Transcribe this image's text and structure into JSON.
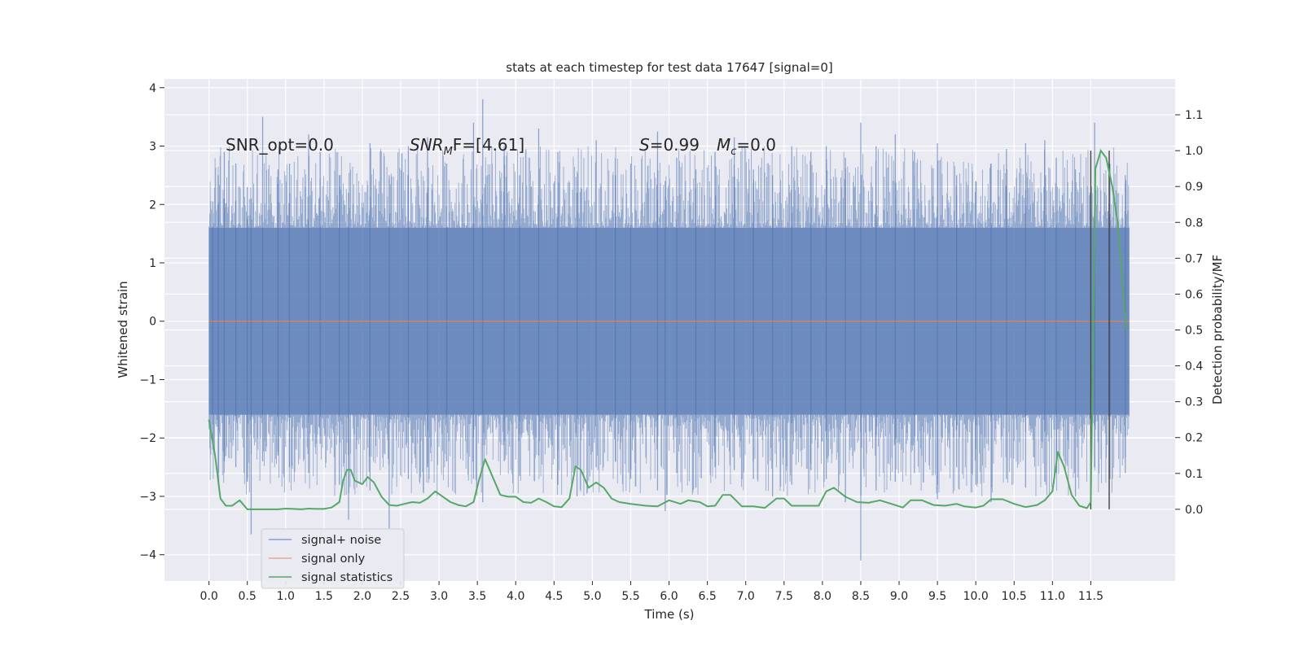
{
  "chart_data": {
    "type": "line",
    "title": "stats at each timestep for test data 17647 [signal=0]",
    "xlabel": "Time (s)",
    "ylabel": "Whitened strain",
    "y2label": "Detection probability/MF",
    "xlim": [
      -0.58,
      12.6
    ],
    "ylim": [
      -4.45,
      4.15
    ],
    "y2lim": [
      -0.2,
      1.2
    ],
    "x_ticks": [
      0.0,
      0.5,
      1.0,
      1.5,
      2.0,
      2.5,
      3.0,
      3.5,
      4.0,
      4.5,
      5.0,
      5.5,
      6.0,
      6.5,
      7.0,
      7.5,
      8.0,
      8.5,
      9.0,
      9.5,
      10.0,
      10.5,
      11.0,
      11.5
    ],
    "x_tick_labels": [
      "0.0",
      "0.5",
      "1.0",
      "1.5",
      "2.0",
      "2.5",
      "3.0",
      "3.5",
      "4.0",
      "4.5",
      "5.0",
      "5.5",
      "6.0",
      "6.5",
      "7.0",
      "7.5",
      "8.0",
      "8.5",
      "9.0",
      "9.5",
      "10.0",
      "10.5",
      "11.0",
      "11.5"
    ],
    "y_ticks": [
      -4,
      -3,
      -2,
      -1,
      0,
      1,
      2,
      3,
      4
    ],
    "y_tick_labels": [
      "−4",
      "−3",
      "−2",
      "−1",
      "0",
      "1",
      "2",
      "3",
      "4"
    ],
    "y2_ticks": [
      0.0,
      0.1,
      0.2,
      0.3,
      0.4,
      0.5,
      0.6,
      0.7,
      0.8,
      0.9,
      1.0,
      1.1
    ],
    "y2_tick_labels": [
      "0.0",
      "0.1",
      "0.2",
      "0.3",
      "0.4",
      "0.5",
      "0.6",
      "0.7",
      "0.8",
      "0.9",
      "1.0",
      "1.1"
    ],
    "grid": true,
    "legend": {
      "placement": "lower-left",
      "entries": [
        {
          "label": "signal+ noise",
          "color": "#4c72b0"
        },
        {
          "label": "signal only",
          "color": "#dd8452"
        },
        {
          "label": "signal statistics",
          "color": "#55a868"
        }
      ]
    },
    "annotations": {
      "snr_opt": "SNR_opt=0.0",
      "snr_mf_main": "SNR",
      "snr_mf_sub": "M",
      "snr_mf_rest": "F=[4.61]",
      "s_main": "S",
      "s_rest": "=0.99",
      "mc_main": "M",
      "mc_sub": "c",
      "mc_rest": "=0.0"
    },
    "series": [
      {
        "name": "signal+ noise",
        "axis": "left",
        "color": "#4c72b0",
        "x_range": [
          0.0,
          12.0
        ],
        "envelope_note_values": {
          "typical_amplitude": 1.6,
          "max": 3.8,
          "min": -4.1
        },
        "peaks": [
          [
            0.05,
            2.05,
            -2.2
          ],
          [
            0.12,
            2.5,
            -2.6
          ],
          [
            0.2,
            2.9,
            -2.4
          ],
          [
            0.35,
            2.7,
            -2.5
          ],
          [
            0.5,
            2.3,
            -2.75
          ],
          [
            0.55,
            2.1,
            -3.65
          ],
          [
            0.7,
            3.5,
            -2.4
          ],
          [
            0.9,
            2.6,
            -2.3
          ],
          [
            1.05,
            2.7,
            -2.5
          ],
          [
            1.3,
            3.2,
            -2.6
          ],
          [
            1.45,
            2.9,
            -2.1
          ],
          [
            1.7,
            2.5,
            -2.8
          ],
          [
            1.82,
            2.2,
            -3.4
          ],
          [
            2.1,
            3.05,
            -2.9
          ],
          [
            2.35,
            2.5,
            -3.55
          ],
          [
            2.6,
            3.0,
            -2.7
          ],
          [
            2.85,
            3.15,
            -2.5
          ],
          [
            3.1,
            2.7,
            -2.4
          ],
          [
            3.45,
            3.4,
            -2.7
          ],
          [
            3.57,
            3.8,
            -3.1
          ],
          [
            3.85,
            3.0,
            -2.4
          ],
          [
            4.05,
            2.5,
            -2.65
          ],
          [
            4.3,
            3.3,
            -2.3
          ],
          [
            4.55,
            2.9,
            -2.8
          ],
          [
            4.8,
            2.2,
            -3.0
          ],
          [
            5.05,
            3.1,
            -2.5
          ],
          [
            5.3,
            2.5,
            -2.4
          ],
          [
            5.5,
            2.7,
            -2.7
          ],
          [
            5.85,
            3.25,
            -2.9
          ],
          [
            5.95,
            2.4,
            -3.25
          ],
          [
            6.1,
            2.8,
            -2.6
          ],
          [
            6.35,
            2.6,
            -2.85
          ],
          [
            6.6,
            2.9,
            -2.5
          ],
          [
            6.85,
            3.15,
            -2.55
          ],
          [
            7.1,
            2.6,
            -2.7
          ],
          [
            7.35,
            2.5,
            -3.0
          ],
          [
            7.6,
            3.0,
            -2.8
          ],
          [
            7.85,
            2.9,
            -2.55
          ],
          [
            8.05,
            3.0,
            -2.7
          ],
          [
            8.3,
            2.8,
            -3.1
          ],
          [
            8.5,
            3.4,
            -4.1
          ],
          [
            8.7,
            3.0,
            -2.9
          ],
          [
            8.95,
            3.2,
            -2.75
          ],
          [
            9.2,
            2.9,
            -2.6
          ],
          [
            9.5,
            3.05,
            -3.05
          ],
          [
            9.75,
            2.5,
            -2.5
          ],
          [
            10.0,
            2.4,
            -2.8
          ],
          [
            10.2,
            2.7,
            -3.1
          ],
          [
            10.4,
            2.95,
            -2.7
          ],
          [
            10.65,
            3.05,
            -2.85
          ],
          [
            10.9,
            3.1,
            -2.75
          ],
          [
            11.05,
            2.8,
            -2.6
          ],
          [
            11.3,
            2.6,
            -3.0
          ],
          [
            11.55,
            3.4,
            -2.5
          ],
          [
            11.75,
            2.7,
            -2.7
          ],
          [
            11.95,
            2.5,
            -2.6
          ]
        ]
      },
      {
        "name": "signal only",
        "axis": "left",
        "color": "#dd8452",
        "x": [
          0.0,
          12.0
        ],
        "y": [
          0.0,
          0.0
        ]
      },
      {
        "name": "signal statistics",
        "axis": "right",
        "color": "#55a868",
        "x": [
          0.0,
          0.08,
          0.15,
          0.22,
          0.3,
          0.4,
          0.5,
          0.6,
          0.7,
          0.8,
          0.9,
          1.0,
          1.1,
          1.2,
          1.3,
          1.4,
          1.5,
          1.6,
          1.7,
          1.75,
          1.8,
          1.85,
          1.9,
          2.0,
          2.07,
          2.15,
          2.25,
          2.35,
          2.45,
          2.55,
          2.65,
          2.75,
          2.85,
          2.95,
          3.05,
          3.15,
          3.25,
          3.35,
          3.45,
          3.52,
          3.6,
          3.7,
          3.8,
          3.9,
          4.0,
          4.1,
          4.2,
          4.3,
          4.4,
          4.5,
          4.6,
          4.7,
          4.78,
          4.85,
          4.95,
          5.05,
          5.15,
          5.25,
          5.35,
          5.5,
          5.7,
          5.85,
          6.0,
          6.15,
          6.25,
          6.4,
          6.5,
          6.6,
          6.7,
          6.8,
          6.95,
          7.1,
          7.25,
          7.4,
          7.5,
          7.6,
          7.75,
          7.95,
          8.05,
          8.15,
          8.3,
          8.45,
          8.6,
          8.75,
          8.9,
          9.05,
          9.15,
          9.3,
          9.45,
          9.6,
          9.75,
          9.85,
          10.0,
          10.1,
          10.2,
          10.35,
          10.5,
          10.65,
          10.8,
          10.9,
          11.0,
          11.07,
          11.15,
          11.25,
          11.35,
          11.45,
          11.5,
          11.56,
          11.63,
          11.7,
          11.78,
          11.85,
          11.9,
          11.96
        ],
        "y": [
          0.25,
          0.15,
          0.03,
          0.01,
          0.01,
          0.025,
          0.0,
          0.0,
          0.0,
          0.0,
          0.0,
          0.002,
          0.001,
          0.0,
          0.002,
          0.001,
          0.001,
          0.005,
          0.02,
          0.08,
          0.11,
          0.11,
          0.08,
          0.07,
          0.09,
          0.075,
          0.035,
          0.012,
          0.01,
          0.015,
          0.02,
          0.018,
          0.03,
          0.05,
          0.035,
          0.02,
          0.012,
          0.008,
          0.02,
          0.08,
          0.14,
          0.09,
          0.04,
          0.035,
          0.035,
          0.02,
          0.018,
          0.03,
          0.02,
          0.008,
          0.006,
          0.03,
          0.12,
          0.11,
          0.06,
          0.075,
          0.06,
          0.03,
          0.02,
          0.015,
          0.01,
          0.008,
          0.025,
          0.015,
          0.025,
          0.02,
          0.008,
          0.01,
          0.04,
          0.04,
          0.008,
          0.008,
          0.004,
          0.03,
          0.03,
          0.01,
          0.01,
          0.01,
          0.05,
          0.06,
          0.035,
          0.02,
          0.018,
          0.025,
          0.015,
          0.005,
          0.025,
          0.025,
          0.012,
          0.01,
          0.015,
          0.008,
          0.005,
          0.01,
          0.028,
          0.028,
          0.015,
          0.006,
          0.012,
          0.025,
          0.05,
          0.16,
          0.12,
          0.04,
          0.01,
          0.003,
          0.02,
          0.95,
          1.0,
          0.98,
          0.9,
          0.8,
          0.67,
          0.5
        ]
      }
    ],
    "vertical_lines": [
      11.5,
      11.74
    ]
  }
}
